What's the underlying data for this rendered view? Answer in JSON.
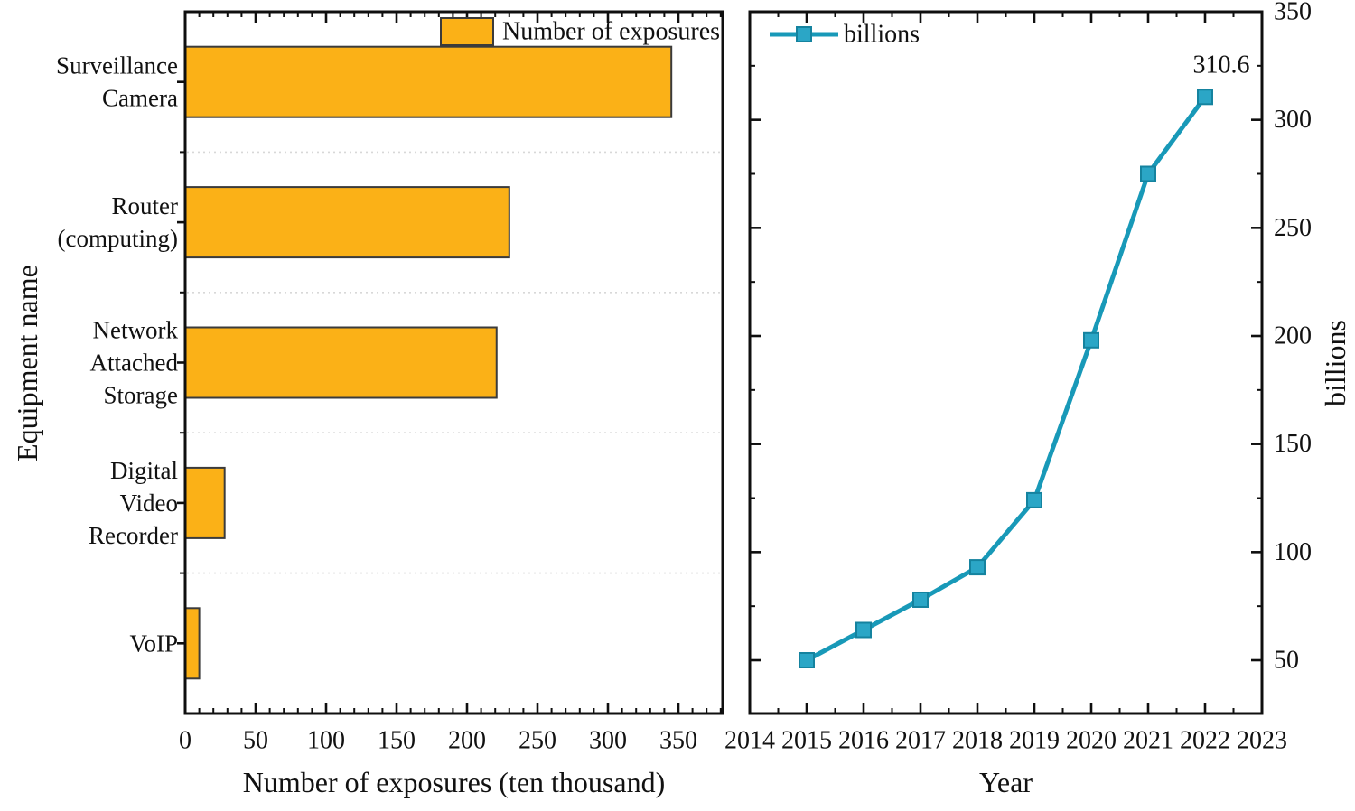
{
  "figure": {
    "background": "#ffffff",
    "text_color": "#111111",
    "spine_color": "#0f0f0f"
  },
  "chart_data": [
    {
      "type": "bar",
      "orientation": "horizontal",
      "xlabel": "Number of exposures (ten thousand)",
      "ylabel": "Equipment name",
      "categories": [
        "Surveillance Camera",
        "Router (computing)",
        "Network Attached Storage",
        "Digital Video Recorder",
        "VoIP"
      ],
      "category_label_lines": [
        [
          "Surveillance",
          "Camera"
        ],
        [
          "Router",
          "(computing)"
        ],
        [
          "Network",
          "Attached",
          "Storage"
        ],
        [
          "Digital",
          "Video",
          "Recorder"
        ],
        [
          "VoIP"
        ]
      ],
      "values": [
        345,
        230,
        221,
        28,
        10
      ],
      "xlim": [
        0,
        381
      ],
      "x_ticks": [
        0,
        50,
        100,
        150,
        200,
        250,
        300,
        350
      ],
      "x_minor_step": 10,
      "grid": "dotted horizontal separators between categories",
      "legend": {
        "label": "Number of exposures",
        "position": "top-right"
      },
      "bar_color": "#FBB117",
      "bar_edge_color": "#3B3B3B",
      "grid_color": "#D8D8D8"
    },
    {
      "type": "line",
      "xlabel": "Year",
      "ylabel": "billions",
      "x": [
        2015,
        2016,
        2017,
        2018,
        2019,
        2020,
        2021,
        2022
      ],
      "series": [
        {
          "name": "billions",
          "values": [
            50,
            64,
            78,
            93,
            124,
            198,
            275,
            310.6
          ]
        }
      ],
      "x_ticks": [
        2014,
        2015,
        2016,
        2017,
        2018,
        2019,
        2020,
        2021,
        2022,
        2023
      ],
      "y_ticks": [
        50,
        100,
        150,
        200,
        250,
        300,
        350
      ],
      "y_minor_step": 25,
      "xlim": [
        2014,
        2023
      ],
      "ylim": [
        26,
        350
      ],
      "y_axis_side": "right",
      "annotation": {
        "text": "310.6",
        "at_x": 2022,
        "at_y": 310.6
      },
      "legend": {
        "label": "billions",
        "position": "top-left"
      },
      "line_color": "#1899B8",
      "marker": "square",
      "marker_fill": "#2BA6C6",
      "marker_edge": "#15839F"
    }
  ]
}
